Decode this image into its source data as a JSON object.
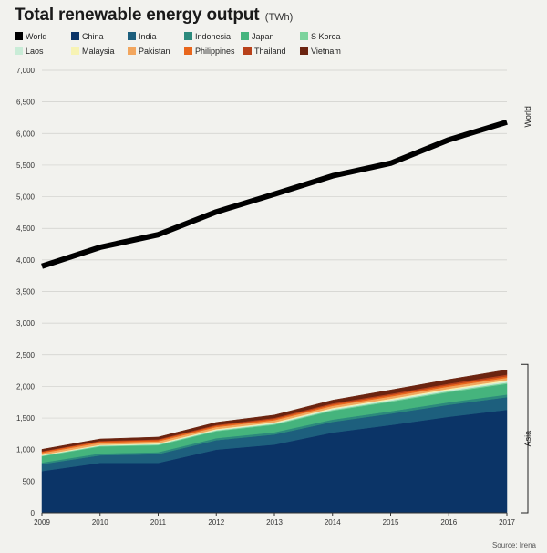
{
  "header": {
    "title": "Total renewable energy output",
    "unit": "(TWh)"
  },
  "source": "Source: Irena",
  "legend": [
    {
      "label": "World",
      "color": "#000000"
    },
    {
      "label": "China",
      "color": "#0b3467"
    },
    {
      "label": "India",
      "color": "#1d5f7d"
    },
    {
      "label": "Indonesia",
      "color": "#2c8a7c"
    },
    {
      "label": "Japan",
      "color": "#45b47d"
    },
    {
      "label": "S Korea",
      "color": "#7cd39d"
    },
    {
      "label": "Laos",
      "color": "#c9ecd7"
    },
    {
      "label": "Malaysia",
      "color": "#f7f3b4"
    },
    {
      "label": "Pakistan",
      "color": "#f2a65e"
    },
    {
      "label": "Philippines",
      "color": "#e8661c"
    },
    {
      "label": "Thailand",
      "color": "#b8411a"
    },
    {
      "label": "Vietnam",
      "color": "#6b2410"
    }
  ],
  "chart_data": {
    "type": "area",
    "title": "Total renewable energy output",
    "unit": "TWh",
    "x": [
      2009,
      2010,
      2011,
      2012,
      2013,
      2014,
      2015,
      2016,
      2017
    ],
    "ylim": [
      0,
      7000
    ],
    "yticks": [
      0,
      500,
      1000,
      1500,
      2000,
      2500,
      3000,
      3500,
      4000,
      4500,
      5000,
      5500,
      6000,
      6500,
      7000
    ],
    "ytick_labels": [
      "0",
      "500",
      "1,000",
      "1,500",
      "2,000",
      "2,500",
      "3,000",
      "3,500",
      "4,000",
      "4,500",
      "5,000",
      "5,500",
      "6,000",
      "6,500",
      "7,000"
    ],
    "grid": true,
    "annotations": [
      "World",
      "Asia"
    ],
    "line_series": {
      "name": "World",
      "color": "#000000",
      "values": [
        3900,
        4200,
        4400,
        4760,
        5040,
        5330,
        5530,
        5900,
        6180
      ]
    },
    "stacked_series": [
      {
        "name": "China",
        "color": "#0b3467",
        "values": [
          660,
          790,
          790,
          1000,
          1080,
          1270,
          1390,
          1520,
          1630
        ]
      },
      {
        "name": "India",
        "color": "#1d5f7d",
        "values": [
          110,
          120,
          140,
          150,
          160,
          170,
          180,
          190,
          200
        ]
      },
      {
        "name": "Indonesia",
        "color": "#2c8a7c",
        "values": [
          25,
          30,
          30,
          32,
          35,
          36,
          38,
          40,
          42
        ]
      },
      {
        "name": "Japan",
        "color": "#45b47d",
        "values": [
          100,
          110,
          110,
          110,
          120,
          140,
          150,
          160,
          170
        ]
      },
      {
        "name": "S Korea",
        "color": "#7cd39d",
        "values": [
          10,
          12,
          12,
          13,
          14,
          15,
          16,
          17,
          18
        ]
      },
      {
        "name": "Laos",
        "color": "#c9ecd7",
        "values": [
          5,
          6,
          8,
          10,
          12,
          14,
          16,
          18,
          20
        ]
      },
      {
        "name": "Malaysia",
        "color": "#f7f3b4",
        "values": [
          8,
          9,
          10,
          11,
          12,
          14,
          16,
          18,
          20
        ]
      },
      {
        "name": "Pakistan",
        "color": "#f2a65e",
        "values": [
          30,
          32,
          32,
          32,
          33,
          34,
          35,
          36,
          38
        ]
      },
      {
        "name": "Philippines",
        "color": "#e8661c",
        "values": [
          19,
          20,
          20,
          20,
          21,
          22,
          23,
          24,
          25
        ]
      },
      {
        "name": "Thailand",
        "color": "#b8411a",
        "values": [
          8,
          10,
          12,
          14,
          16,
          18,
          20,
          22,
          25
        ]
      },
      {
        "name": "Vietnam",
        "color": "#6b2410",
        "values": [
          30,
          30,
          35,
          40,
          45,
          50,
          60,
          65,
          75
        ]
      }
    ]
  }
}
